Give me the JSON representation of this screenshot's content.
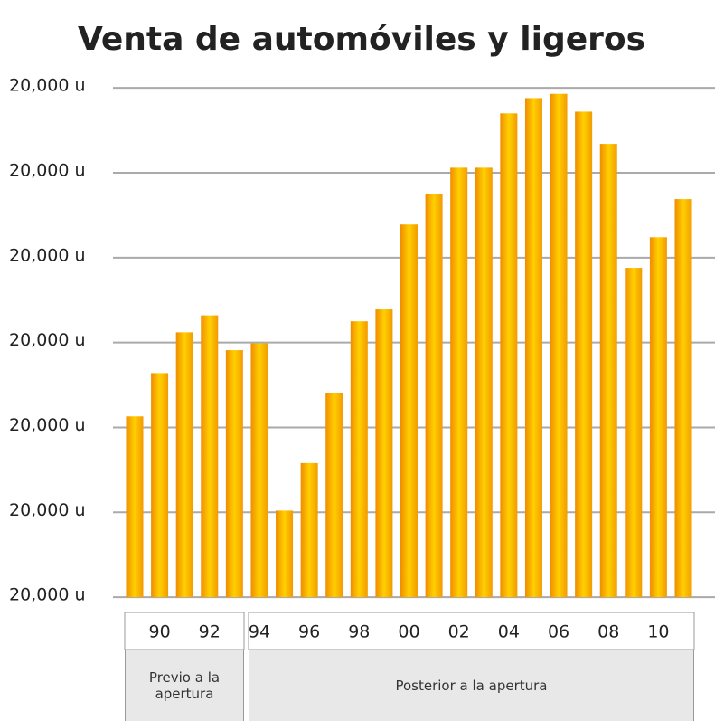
{
  "chart_data": {
    "type": "bar",
    "title": "Venta de automóviles y ligeros",
    "categories": [
      null,
      "90",
      null,
      "92",
      null,
      "94",
      null,
      "96",
      null,
      "98",
      null,
      "00",
      null,
      "02",
      null,
      "04",
      null,
      "06",
      null,
      "08",
      null,
      "10",
      null
    ],
    "values": [
      2.13,
      2.64,
      3.12,
      3.32,
      2.91,
      2.99,
      1.02,
      1.58,
      2.41,
      3.25,
      3.39,
      4.39,
      4.75,
      5.06,
      5.06,
      5.7,
      5.88,
      5.93,
      5.72,
      5.34,
      3.88,
      4.24,
      4.69
    ],
    "color": "#ffd000",
    "ylim": [
      -0.18,
      6.2
    ],
    "yticks": [
      {
        "value": 0,
        "label": "20,000 u"
      },
      {
        "value": 1,
        "label": "20,000 u"
      },
      {
        "value": 2,
        "label": "20,000 u"
      },
      {
        "value": 3,
        "label": "20,000 u"
      },
      {
        "value": 4,
        "label": "20,000 u"
      },
      {
        "value": 5,
        "label": "20,000 u"
      },
      {
        "value": 6,
        "label": "20,000 u"
      }
    ],
    "grid": true,
    "groups": [
      "Previo a la apertura",
      "Posterior a la apertura"
    ]
  }
}
